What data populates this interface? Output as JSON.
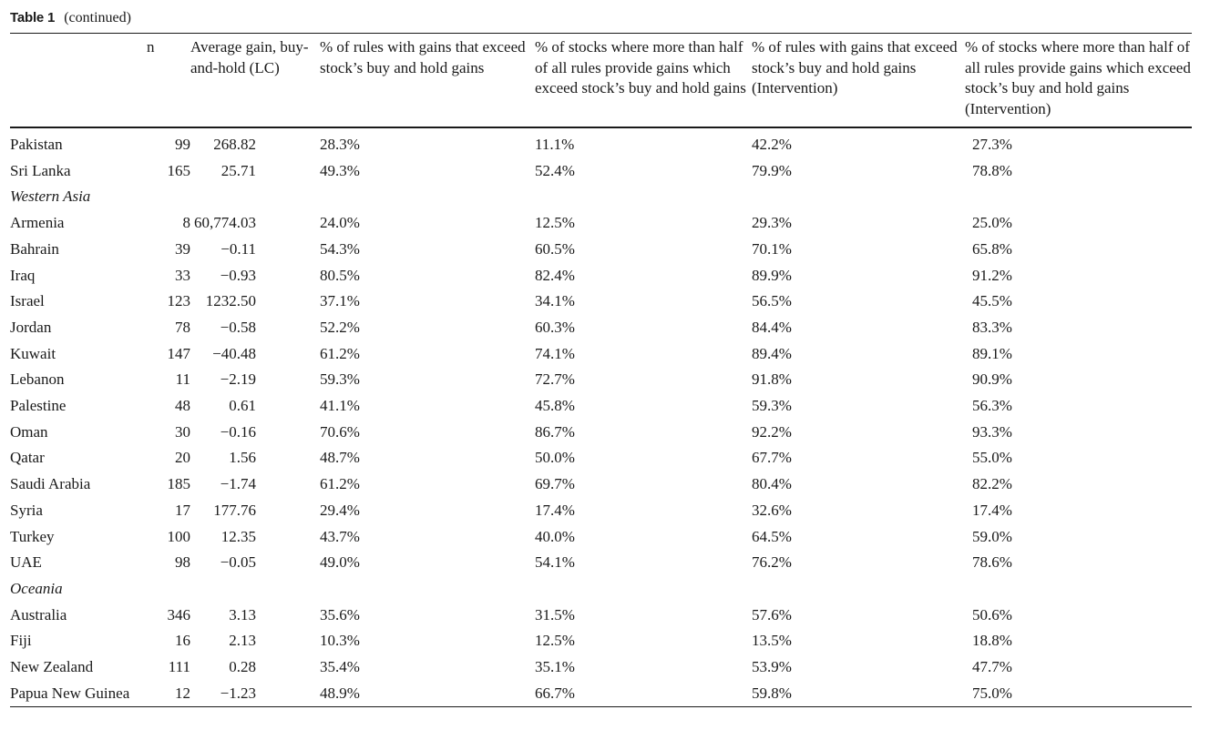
{
  "caption": {
    "label": "Table 1",
    "note": "(continued)"
  },
  "table": {
    "headers": [
      "",
      "n",
      "Average gain, buy-and-hold (LC)",
      "% of rules with gains that exceed stock’s buy and hold gains",
      "% of stocks where more than half of all rules provide gains which exceed stock’s buy and hold gains",
      "% of rules with gains that exceed stock’s buy and hold gains (Intervention)",
      "% of stocks where more than half of all rules provide gains which exceed stock’s buy and hold gains (Intervention)"
    ],
    "rows": [
      {
        "type": "data",
        "cells": [
          "Pakistan",
          "99",
          "268.82",
          "28.3%",
          "11.1%",
          "42.2%",
          "27.3%"
        ]
      },
      {
        "type": "data",
        "cells": [
          "Sri Lanka",
          "165",
          "25.71",
          "49.3%",
          "52.4%",
          "79.9%",
          "78.8%"
        ]
      },
      {
        "type": "region",
        "cells": [
          "Western Asia"
        ]
      },
      {
        "type": "data",
        "cells": [
          "Armenia",
          "8",
          "60,774.03",
          "24.0%",
          "12.5%",
          "29.3%",
          "25.0%"
        ]
      },
      {
        "type": "data",
        "cells": [
          "Bahrain",
          "39",
          "−0.11",
          "54.3%",
          "60.5%",
          "70.1%",
          "65.8%"
        ]
      },
      {
        "type": "data",
        "cells": [
          "Iraq",
          "33",
          "−0.93",
          "80.5%",
          "82.4%",
          "89.9%",
          "91.2%"
        ]
      },
      {
        "type": "data",
        "cells": [
          "Israel",
          "123",
          "1232.50",
          "37.1%",
          "34.1%",
          "56.5%",
          "45.5%"
        ]
      },
      {
        "type": "data",
        "cells": [
          "Jordan",
          "78",
          "−0.58",
          "52.2%",
          "60.3%",
          "84.4%",
          "83.3%"
        ]
      },
      {
        "type": "data",
        "cells": [
          "Kuwait",
          "147",
          "−40.48",
          "61.2%",
          "74.1%",
          "89.4%",
          "89.1%"
        ]
      },
      {
        "type": "data",
        "cells": [
          "Lebanon",
          "11",
          "−2.19",
          "59.3%",
          "72.7%",
          "91.8%",
          "90.9%"
        ]
      },
      {
        "type": "data",
        "cells": [
          "Palestine",
          "48",
          "0.61",
          "41.1%",
          "45.8%",
          "59.3%",
          "56.3%"
        ]
      },
      {
        "type": "data",
        "cells": [
          "Oman",
          "30",
          "−0.16",
          "70.6%",
          "86.7%",
          "92.2%",
          "93.3%"
        ]
      },
      {
        "type": "data",
        "cells": [
          "Qatar",
          "20",
          "1.56",
          "48.7%",
          "50.0%",
          "67.7%",
          "55.0%"
        ]
      },
      {
        "type": "data",
        "cells": [
          "Saudi Arabia",
          "185",
          "−1.74",
          "61.2%",
          "69.7%",
          "80.4%",
          "82.2%"
        ]
      },
      {
        "type": "data",
        "cells": [
          "Syria",
          "17",
          "177.76",
          "29.4%",
          "17.4%",
          "32.6%",
          "17.4%"
        ]
      },
      {
        "type": "data",
        "cells": [
          "Turkey",
          "100",
          "12.35",
          "43.7%",
          "40.0%",
          "64.5%",
          "59.0%"
        ]
      },
      {
        "type": "data",
        "cells": [
          "UAE",
          "98",
          "−0.05",
          "49.0%",
          "54.1%",
          "76.2%",
          "78.6%"
        ]
      },
      {
        "type": "region",
        "cells": [
          "Oceania"
        ]
      },
      {
        "type": "data",
        "cells": [
          "Australia",
          "346",
          "3.13",
          "35.6%",
          "31.5%",
          "57.6%",
          "50.6%"
        ]
      },
      {
        "type": "data",
        "cells": [
          "Fiji",
          "16",
          "2.13",
          "10.3%",
          "12.5%",
          "13.5%",
          "18.8%"
        ]
      },
      {
        "type": "data",
        "cells": [
          "New Zealand",
          "111",
          "0.28",
          "35.4%",
          "35.1%",
          "53.9%",
          "47.7%"
        ]
      },
      {
        "type": "data",
        "cells": [
          "Papua New Guinea",
          "12",
          "−1.23",
          "48.9%",
          "66.7%",
          "59.8%",
          "75.0%"
        ]
      }
    ]
  }
}
